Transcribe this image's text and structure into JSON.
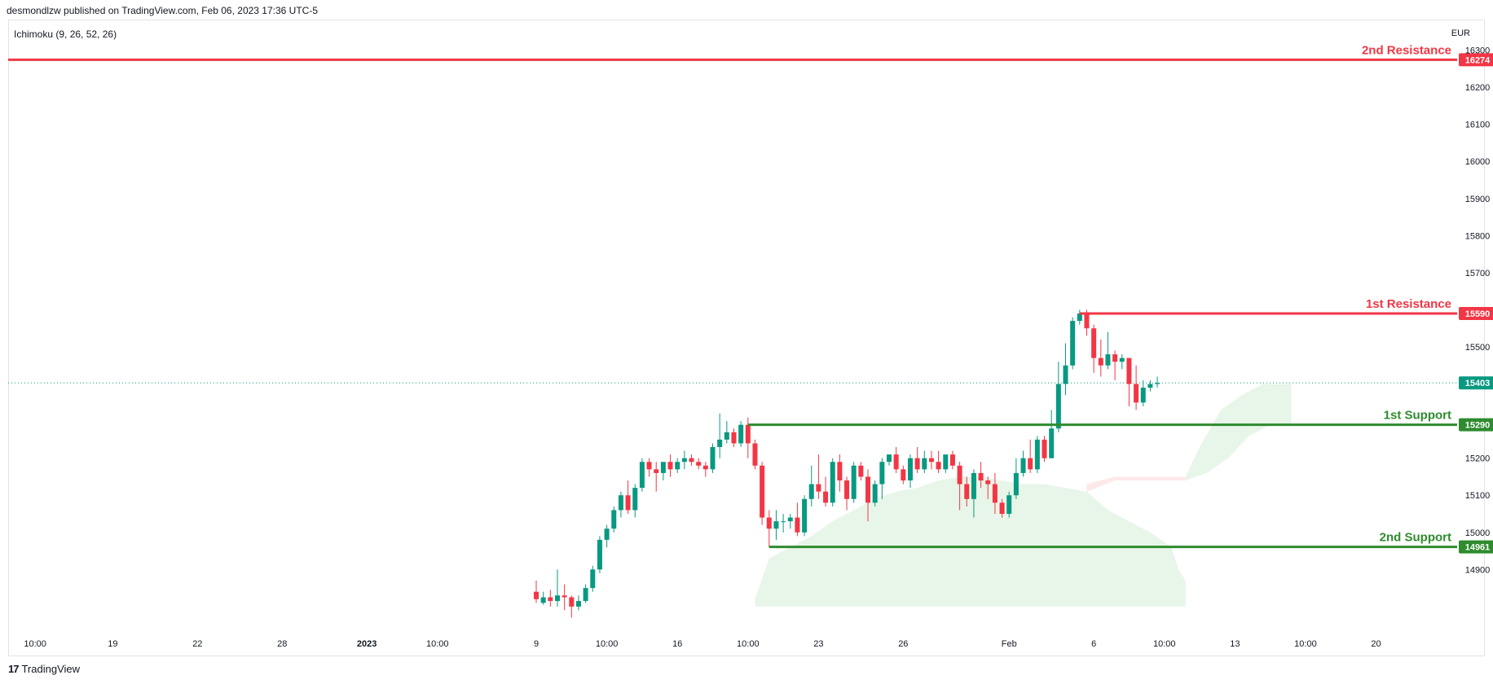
{
  "header": {
    "publisher": "desmondlzw published on TradingView.com, Feb 06, 2023 17:36 UTC-5"
  },
  "indicator": "Ichimoku (9, 26, 52, 26)",
  "currency": "EUR",
  "footer": {
    "brand": "TradingView",
    "mark": "17"
  },
  "colors": {
    "up": "#089981",
    "down": "#f23645",
    "resistance": "#f23645",
    "support": "#2e8b2e",
    "cloud_bull": "#e8f5e9",
    "cloud_bear": "#fde8ea",
    "last_price": "#089981"
  },
  "chart_data": {
    "type": "candlestick",
    "ylim": [
      14800,
      16320
    ],
    "y_ticks": [
      14900,
      15000,
      15100,
      15200,
      15300,
      15400,
      15500,
      15600,
      15700,
      15800,
      15900,
      16000,
      16100,
      16200,
      16300
    ],
    "x_ticks": [
      {
        "label": "10:00",
        "i": -71
      },
      {
        "label": "19",
        "i": -60
      },
      {
        "label": "22",
        "i": -48
      },
      {
        "label": "28",
        "i": -36
      },
      {
        "label": "2023",
        "i": -24,
        "bold": true
      },
      {
        "label": "10:00",
        "i": -14
      },
      {
        "label": "9",
        "i": 0
      },
      {
        "label": "10:00",
        "i": 10
      },
      {
        "label": "16",
        "i": 20
      },
      {
        "label": "10:00",
        "i": 30
      },
      {
        "label": "23",
        "i": 40
      },
      {
        "label": "26",
        "i": 52
      },
      {
        "label": "Feb",
        "i": 67
      },
      {
        "label": "6",
        "i": 79
      },
      {
        "label": "10:00",
        "i": 89
      },
      {
        "label": "13",
        "i": 99
      },
      {
        "label": "10:00",
        "i": 109
      },
      {
        "label": "20",
        "i": 119
      }
    ],
    "candles": [
      [
        14840,
        14870,
        14820,
        14810
      ],
      [
        14810,
        14840,
        14825,
        14805
      ],
      [
        14825,
        14845,
        14815,
        14800
      ],
      [
        14815,
        14900,
        14830,
        14800
      ],
      [
        14830,
        14860,
        14825,
        14790
      ],
      [
        14825,
        14830,
        14800,
        14770
      ],
      [
        14800,
        14830,
        14815,
        14790
      ],
      [
        14815,
        14860,
        14850,
        14810
      ],
      [
        14850,
        14910,
        14900,
        14840
      ],
      [
        14900,
        14990,
        14980,
        14890
      ],
      [
        14980,
        15020,
        15010,
        14960
      ],
      [
        15010,
        15070,
        15060,
        15000
      ],
      [
        15060,
        15110,
        15100,
        15040
      ],
      [
        15100,
        15140,
        15060,
        15050
      ],
      [
        15060,
        15130,
        15120,
        15040
      ],
      [
        15120,
        15200,
        15190,
        15110
      ],
      [
        15190,
        15200,
        15170,
        15150
      ],
      [
        15170,
        15190,
        15160,
        15110
      ],
      [
        15160,
        15180,
        15190,
        15140
      ],
      [
        15190,
        15210,
        15170,
        15150
      ],
      [
        15170,
        15200,
        15190,
        15160
      ],
      [
        15190,
        15220,
        15200,
        15170
      ],
      [
        15200,
        15210,
        15190,
        15180
      ],
      [
        15190,
        15200,
        15180,
        15170
      ],
      [
        15180,
        15190,
        15170,
        15150
      ],
      [
        15170,
        15240,
        15230,
        15160
      ],
      [
        15230,
        15320,
        15250,
        15200
      ],
      [
        15250,
        15300,
        15270,
        15240
      ],
      [
        15270,
        15280,
        15240,
        15230
      ],
      [
        15240,
        15300,
        15290,
        15230
      ],
      [
        15290,
        15310,
        15240,
        15200
      ],
      [
        15240,
        15250,
        15180,
        15170
      ],
      [
        15180,
        15190,
        15040,
        15020
      ],
      [
        15040,
        15060,
        15010,
        14960
      ],
      [
        15010,
        15060,
        15030,
        14980
      ],
      [
        15030,
        15050,
        15030,
        15000
      ],
      [
        15030,
        15050,
        15040,
        15010
      ],
      [
        15040,
        15080,
        15000,
        14990
      ],
      [
        15000,
        15100,
        15090,
        14990
      ],
      [
        15090,
        15180,
        15130,
        15070
      ],
      [
        15130,
        15210,
        15110,
        15090
      ],
      [
        15110,
        15150,
        15080,
        15070
      ],
      [
        15080,
        15200,
        15190,
        15070
      ],
      [
        15190,
        15210,
        15140,
        15110
      ],
      [
        15140,
        15150,
        15090,
        15060
      ],
      [
        15090,
        15190,
        15180,
        15080
      ],
      [
        15180,
        15190,
        15150,
        15140
      ],
      [
        15150,
        15170,
        15080,
        15030
      ],
      [
        15080,
        15140,
        15130,
        15070
      ],
      [
        15130,
        15200,
        15190,
        15090
      ],
      [
        15190,
        15210,
        15210,
        15180
      ],
      [
        15210,
        15230,
        15170,
        15160
      ],
      [
        15170,
        15180,
        15140,
        15130
      ],
      [
        15140,
        15210,
        15200,
        15120
      ],
      [
        15200,
        15230,
        15170,
        15160
      ],
      [
        15170,
        15220,
        15200,
        15160
      ],
      [
        15200,
        15220,
        15190,
        15170
      ],
      [
        15190,
        15220,
        15170,
        15160
      ],
      [
        15170,
        15190,
        15210,
        15160
      ],
      [
        15210,
        15220,
        15180,
        15170
      ],
      [
        15180,
        15190,
        15130,
        15060
      ],
      [
        15130,
        15150,
        15090,
        15070
      ],
      [
        15090,
        15170,
        15160,
        15040
      ],
      [
        15160,
        15190,
        15140,
        15120
      ],
      [
        15140,
        15150,
        15130,
        15090
      ],
      [
        15130,
        15160,
        15080,
        15050
      ],
      [
        15080,
        15090,
        15050,
        15040
      ],
      [
        15050,
        15110,
        15100,
        15040
      ],
      [
        15100,
        15200,
        15160,
        15090
      ],
      [
        15160,
        15220,
        15200,
        15150
      ],
      [
        15200,
        15250,
        15170,
        15160
      ],
      [
        15170,
        15260,
        15250,
        15160
      ],
      [
        15250,
        15260,
        15200,
        15190
      ],
      [
        15200,
        15330,
        15280,
        15200
      ],
      [
        15280,
        15460,
        15400,
        15270
      ],
      [
        15400,
        15510,
        15450,
        15370
      ],
      [
        15450,
        15580,
        15570,
        15440
      ],
      [
        15570,
        15600,
        15590,
        15560
      ],
      [
        15590,
        15600,
        15550,
        15530
      ],
      [
        15550,
        15560,
        15470,
        15430
      ],
      [
        15470,
        15520,
        15450,
        15420
      ],
      [
        15450,
        15540,
        15480,
        15440
      ],
      [
        15480,
        15490,
        15460,
        15410
      ],
      [
        15460,
        15480,
        15470,
        15440
      ],
      [
        15470,
        15460,
        15400,
        15340
      ],
      [
        15400,
        15450,
        15350,
        15330
      ],
      [
        15350,
        15410,
        15390,
        15340
      ],
      [
        15390,
        15410,
        15400,
        15380
      ],
      [
        15400,
        15420,
        15403,
        15390
      ]
    ],
    "cloud_bull": {
      "top": [
        [
          31,
          14820
        ],
        [
          33,
          14930
        ],
        [
          36,
          14960
        ],
        [
          39,
          14990
        ],
        [
          42,
          15030
        ],
        [
          45,
          15060
        ],
        [
          48,
          15090
        ],
        [
          51,
          15110
        ],
        [
          54,
          15120
        ],
        [
          57,
          15140
        ],
        [
          60,
          15150
        ],
        [
          63,
          15150
        ],
        [
          66,
          15140
        ],
        [
          69,
          15130
        ],
        [
          72,
          15130
        ],
        [
          75,
          15120
        ],
        [
          78,
          15110
        ],
        [
          81,
          15060
        ],
        [
          84,
          15030
        ],
        [
          87,
          15000
        ],
        [
          90,
          14960
        ],
        [
          91,
          14900
        ],
        [
          92,
          14870
        ]
      ],
      "bottom": [
        [
          31,
          14800
        ],
        [
          92,
          14800
        ]
      ]
    },
    "cloud_bull_future": {
      "top": [
        [
          92,
          15150
        ],
        [
          94,
          15230
        ],
        [
          97,
          15330
        ],
        [
          100,
          15370
        ],
        [
          103,
          15400
        ],
        [
          107,
          15400
        ]
      ],
      "bottom": [
        [
          92,
          15140
        ],
        [
          95,
          15160
        ],
        [
          98,
          15200
        ],
        [
          101,
          15260
        ],
        [
          104,
          15290
        ],
        [
          107,
          15290
        ]
      ]
    },
    "cloud_bear": {
      "top": [
        [
          78,
          15130
        ],
        [
          82,
          15150
        ],
        [
          86,
          15150
        ],
        [
          90,
          15150
        ],
        [
          92,
          15150
        ]
      ],
      "bottom": [
        [
          78,
          15110
        ],
        [
          82,
          15140
        ],
        [
          86,
          15140
        ],
        [
          90,
          15140
        ],
        [
          92,
          15140
        ]
      ]
    },
    "levels": [
      {
        "name": "2nd Resistance",
        "value": 16274,
        "label": "16274",
        "kind": "resistance",
        "from": -100
      },
      {
        "name": "1st Resistance",
        "value": 15590,
        "label": "15590",
        "kind": "resistance",
        "from": 77
      },
      {
        "name": "1st Support",
        "value": 15290,
        "label": "15290",
        "kind": "support",
        "from": 30
      },
      {
        "name": "2nd Support",
        "value": 14961,
        "label": "14961",
        "kind": "support",
        "from": 33
      }
    ],
    "last_price": {
      "value": 15403,
      "label": "15403"
    }
  }
}
